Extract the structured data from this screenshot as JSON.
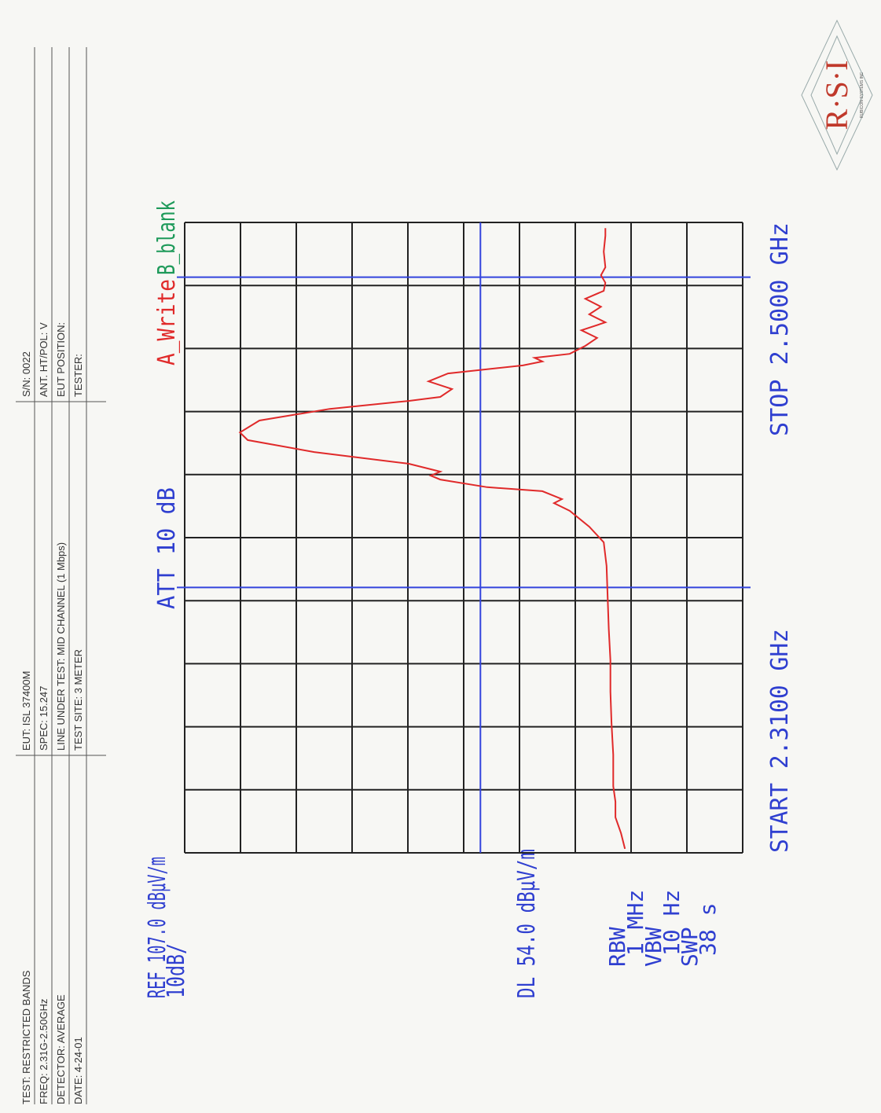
{
  "header": {
    "cells": [
      [
        "TEST:  RESTRICTED BANDS",
        "EUT:  ISL 37400M",
        "S/N:  0022"
      ],
      [
        "FREQ:  2.31G-2.50GHz",
        "SPEC:  15.247",
        "ANT. HT/POL:    V"
      ],
      [
        "DETECTOR:  AVERAGE",
        "LINE UNDER TEST:  MID CHANNEL (1 Mbps)",
        "EUT POSITION:"
      ],
      [
        "DATE:      4-24-01",
        "TEST SITE:  3 METER",
        "TESTER:"
      ]
    ]
  },
  "logo": {
    "text": "R·S·I",
    "subtext": "RUBICON SYSTEMS INC"
  },
  "chart_data": {
    "type": "line",
    "reference": "REF 107.0 dBµV/m",
    "scale": "10dB/",
    "attenuation": "ATT 10 dB",
    "start": "START 2.3100 GHz",
    "stop": "STOP 2.5000 GHz",
    "settings": [
      "RBW",
      "1 MHz",
      "VBW",
      "10 Hz",
      "SWP",
      "38 s"
    ],
    "display_line": {
      "value": 54,
      "label": "DL 54.0 dBµV/m"
    },
    "markers": [
      2.39,
      2.4835
    ],
    "marker_color": "#3344dd",
    "blank_trace": {
      "name": "B_blank",
      "color": "#1e9a5a"
    },
    "xlim": [
      2.31,
      2.5
    ],
    "ylim": [
      7,
      107
    ],
    "xticks": [
      2.31,
      2.329,
      2.348,
      2.367,
      2.386,
      2.405,
      2.424,
      2.443,
      2.462,
      2.481,
      2.5
    ],
    "yticks": [
      7,
      17,
      27,
      37,
      47,
      57,
      67,
      77,
      87,
      97,
      107
    ],
    "grid": true,
    "x": [
      2.3112,
      2.3159,
      2.3207,
      2.3254,
      2.3301,
      2.3396,
      2.3491,
      2.3586,
      2.368,
      2.3775,
      2.387,
      2.3965,
      2.4036,
      2.4083,
      2.4131,
      2.4154,
      2.4166,
      2.419,
      2.4202,
      2.4225,
      2.4237,
      2.4249,
      2.4273,
      2.4308,
      2.4344,
      2.4367,
      2.4403,
      2.4438,
      2.4462,
      2.4474,
      2.4498,
      2.4521,
      2.4545,
      2.4569,
      2.4581,
      2.4592,
      2.4604,
      2.4628,
      2.4652,
      2.4675,
      2.4699,
      2.4723,
      2.4746,
      2.477,
      2.4794,
      2.4818,
      2.4841,
      2.4865,
      2.4912,
      2.496,
      2.4983
    ],
    "series": [
      {
        "name": "A_Write",
        "color": "#e02a2a",
        "values": [
          28.1,
          28.8,
          29.8,
          29.8,
          30.2,
          30.2,
          30.5,
          30.7,
          30.7,
          31.0,
          31.2,
          31.4,
          31.9,
          34.5,
          38.0,
          40.8,
          39.4,
          42.9,
          52.8,
          61.2,
          62.9,
          61.2,
          66.9,
          83.8,
          95.7,
          97.1,
          93.6,
          81.0,
          66.9,
          61.2,
          59.1,
          63.3,
          59.8,
          46.4,
          42.9,
          44.3,
          38.0,
          35.2,
          33.1,
          35.9,
          31.6,
          34.5,
          32.4,
          35.2,
          31.9,
          31.6,
          32.4,
          31.6,
          31.9,
          31.6,
          31.6
        ]
      }
    ]
  }
}
